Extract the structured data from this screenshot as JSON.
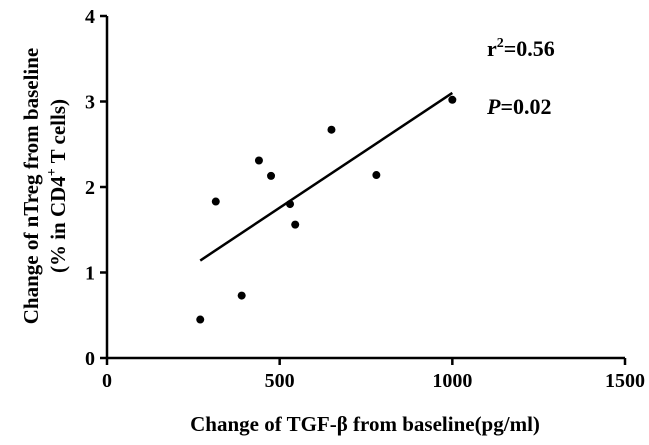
{
  "chart_data": {
    "type": "scatter",
    "xlabel": "Change of TGF-β from baseline(pg/ml)",
    "ylabel_line1": "Change of nTreg from baseline",
    "ylabel_line2_prefix": "(% in CD4",
    "ylabel_line2_sup": "+",
    "ylabel_line2_suffix": " T cells)",
    "xlim": [
      0,
      1500
    ],
    "ylim": [
      0,
      4
    ],
    "x_ticks": [
      0,
      500,
      1000,
      1500
    ],
    "y_ticks": [
      0,
      1,
      2,
      3,
      4
    ],
    "points": [
      {
        "x": 270,
        "y": 0.45
      },
      {
        "x": 315,
        "y": 1.83
      },
      {
        "x": 390,
        "y": 0.73
      },
      {
        "x": 440,
        "y": 2.31
      },
      {
        "x": 475,
        "y": 2.13
      },
      {
        "x": 530,
        "y": 1.8
      },
      {
        "x": 545,
        "y": 1.56
      },
      {
        "x": 650,
        "y": 2.67
      },
      {
        "x": 780,
        "y": 2.14
      },
      {
        "x": 1000,
        "y": 3.02
      }
    ],
    "fit_line": {
      "x": [
        270,
        1000
      ],
      "y": [
        1.14,
        3.1
      ]
    },
    "annotations": {
      "r2_base": "r",
      "r2_sup": "2",
      "r2_value": "=0.56",
      "p_label": "P",
      "p_value": "=0.02"
    },
    "grid": false,
    "legend": "none"
  }
}
